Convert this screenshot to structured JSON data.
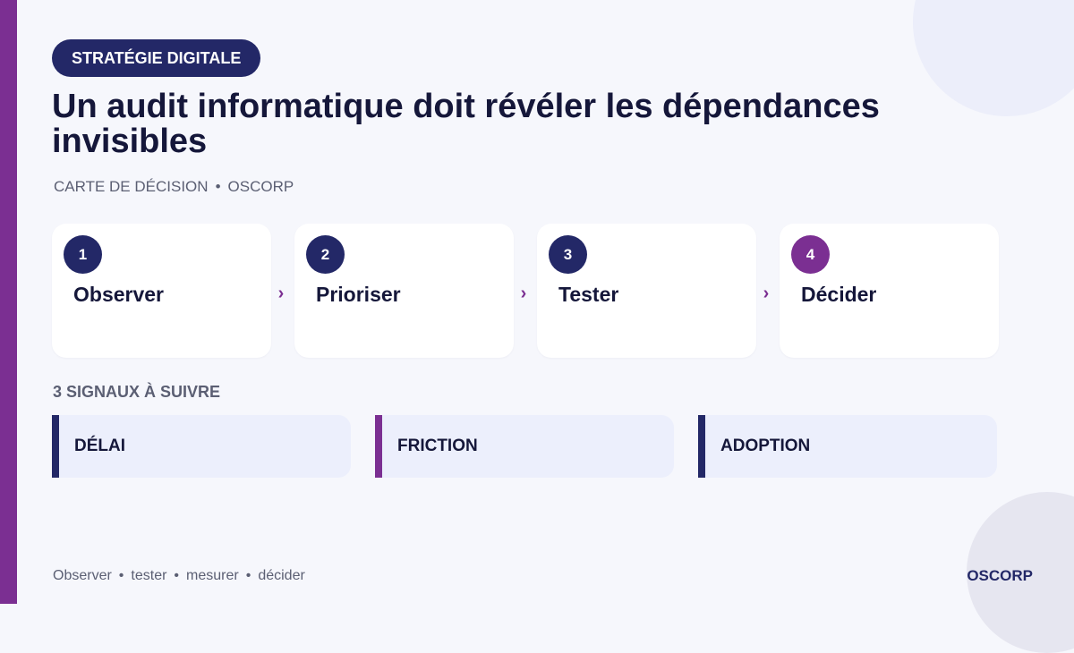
{
  "badge": {
    "label": "STRATÉGIE DIGITALE"
  },
  "title": "Un audit informatique doit révéler les dépendances invisibles",
  "subtitle": {
    "kind": "CARTE DE DÉCISION",
    "separator": "•",
    "brand": "OSCORP"
  },
  "steps": [
    {
      "number": "1",
      "label": "Observer",
      "color": "#232867"
    },
    {
      "number": "2",
      "label": "Prioriser",
      "color": "#232867"
    },
    {
      "number": "3",
      "label": "Tester",
      "color": "#232867"
    },
    {
      "number": "4",
      "label": "Décider",
      "color": "#7b2f92"
    }
  ],
  "step_arrow": "›",
  "signals": {
    "heading": "3 SIGNAUX À SUIVRE",
    "items": [
      {
        "label": "DÉLAI",
        "accent": "#232867"
      },
      {
        "label": "FRICTION",
        "accent": "#7b2f92"
      },
      {
        "label": "ADOPTION",
        "accent": "#232867"
      }
    ]
  },
  "footer": {
    "words": [
      "Observer",
      "tester",
      "mesurer",
      "décider"
    ],
    "separator": "•",
    "brand": "OSCORP"
  },
  "colors": {
    "primary": "#232867",
    "accent": "#7b2f92",
    "background": "#f6f7fc"
  }
}
